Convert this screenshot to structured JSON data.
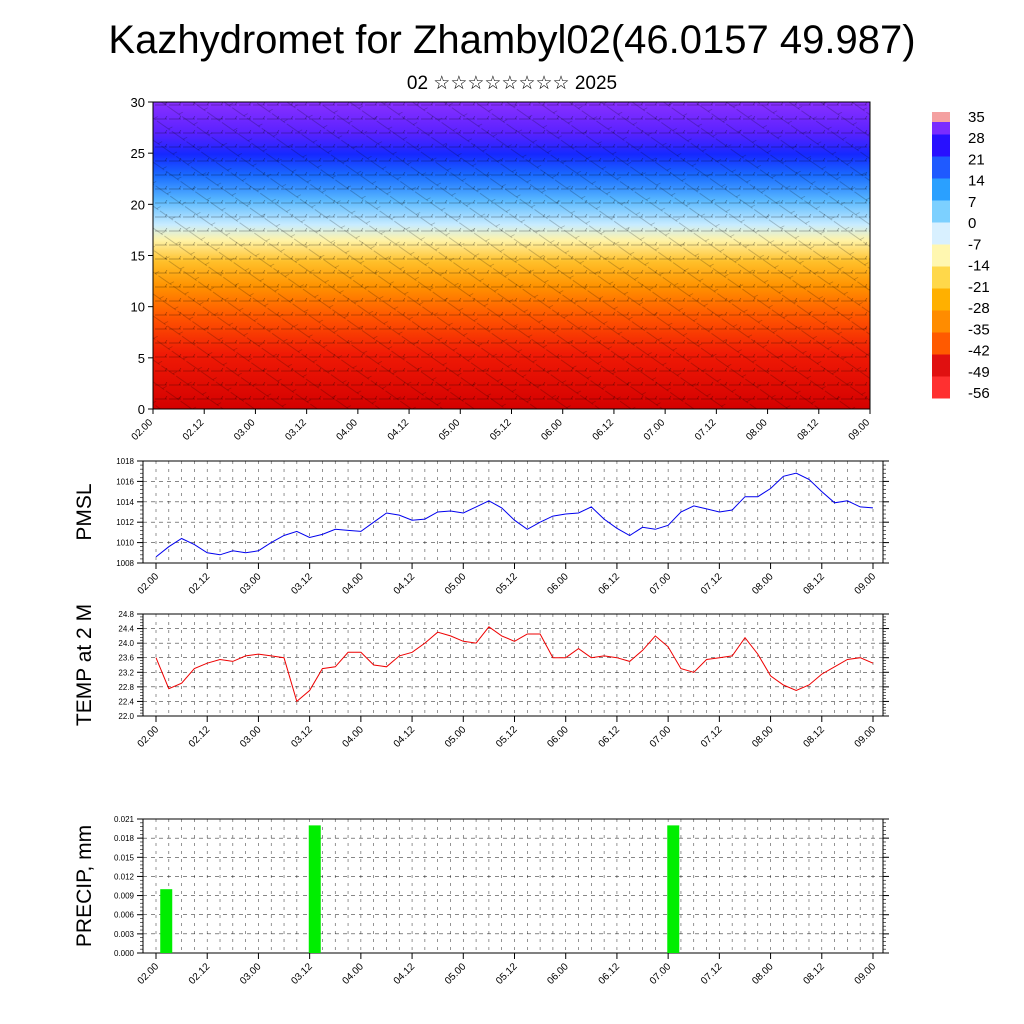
{
  "header": {
    "title": "Kazhydromet for Zhambyl02(46.0157 49.987)",
    "subtitle": "02 ☆☆☆☆☆☆☆☆ 2025"
  },
  "chart_data": [
    {
      "type": "heatmap",
      "name": "cross-section",
      "x_ticks": [
        "02.00",
        "02.12",
        "03.00",
        "03.12",
        "04.00",
        "04.12",
        "05.00",
        "05.12",
        "06.00",
        "06.12",
        "07.00",
        "07.12",
        "08.00",
        "08.12",
        "09.00"
      ],
      "y_ticks": [
        "0",
        "5",
        "10",
        "15",
        "20",
        "25",
        "30"
      ],
      "ylim": [
        0,
        30
      ],
      "colorbar_labels": [
        "35",
        "28",
        "21",
        "14",
        "7",
        "0",
        "-7",
        "-14",
        "-21",
        "-28",
        "-35",
        "-42",
        "-49",
        "-56"
      ],
      "colormap": [
        "#ff3030",
        "#e01010",
        "#ff5a00",
        "#ff8c00",
        "#ffb000",
        "#ffd84a",
        "#fff7b0",
        "#d8f0ff",
        "#7cd0ff",
        "#2aa0ff",
        "#1f5aff",
        "#2810ff",
        "#7a2cff"
      ]
    },
    {
      "type": "line",
      "name": "pmsl",
      "ylabel": "PMSL",
      "ylim": [
        1008,
        1018
      ],
      "y_ticks": [
        "1008",
        "1010",
        "1012",
        "1014",
        "1016",
        "1018"
      ],
      "x_ticks": [
        "02.00",
        "02.12",
        "03.00",
        "03.12",
        "04.00",
        "04.12",
        "05.00",
        "05.12",
        "06.00",
        "06.12",
        "07.00",
        "07.12",
        "08.00",
        "08.12",
        "09.00"
      ],
      "line_color": "#0000ee",
      "values": [
        1008.6,
        1009.6,
        1010.4,
        1009.8,
        1009.0,
        1008.8,
        1009.2,
        1009.0,
        1009.2,
        1010.0,
        1010.7,
        1011.1,
        1010.5,
        1010.8,
        1011.3,
        1011.2,
        1011.1,
        1012.0,
        1012.9,
        1012.7,
        1012.2,
        1012.3,
        1013.0,
        1013.1,
        1012.9,
        1013.5,
        1014.1,
        1013.4,
        1012.2,
        1011.3,
        1012.0,
        1012.6,
        1012.8,
        1012.9,
        1013.5,
        1012.3,
        1011.4,
        1010.7,
        1011.5,
        1011.3,
        1011.7,
        1013.0,
        1013.6,
        1013.3,
        1013.0,
        1013.2,
        1014.5,
        1014.5,
        1015.3,
        1016.5,
        1016.8,
        1016.2,
        1015.0,
        1013.9,
        1014.1,
        1013.5,
        1013.4
      ]
    },
    {
      "type": "line",
      "name": "temp2m",
      "ylabel": "TEMP at 2 M",
      "ylim": [
        22.0,
        24.8
      ],
      "y_ticks": [
        "22.0",
        "22.4",
        "22.8",
        "23.2",
        "23.6",
        "24.0",
        "24.4",
        "24.8"
      ],
      "x_ticks": [
        "02.00",
        "02.12",
        "03.00",
        "03.12",
        "04.00",
        "04.12",
        "05.00",
        "05.12",
        "06.00",
        "06.12",
        "07.00",
        "07.12",
        "08.00",
        "08.12",
        "09.00"
      ],
      "line_color": "#ee0000",
      "values": [
        23.6,
        22.75,
        22.9,
        23.3,
        23.45,
        23.55,
        23.5,
        23.65,
        23.7,
        23.65,
        23.6,
        22.4,
        22.7,
        23.3,
        23.35,
        23.75,
        23.75,
        23.4,
        23.35,
        23.65,
        23.75,
        24.0,
        24.3,
        24.2,
        24.05,
        24.0,
        24.45,
        24.2,
        24.05,
        24.25,
        24.25,
        23.6,
        23.6,
        23.85,
        23.6,
        23.65,
        23.6,
        23.5,
        23.8,
        24.2,
        23.9,
        23.3,
        23.2,
        23.55,
        23.6,
        23.65,
        24.15,
        23.7,
        23.1,
        22.85,
        22.7,
        22.85,
        23.15,
        23.35,
        23.55,
        23.6,
        23.45
      ]
    },
    {
      "type": "bar",
      "name": "precip",
      "ylabel": "PRECIP, mm",
      "ylim": [
        0,
        0.021
      ],
      "y_ticks": [
        "0.000",
        "0.003",
        "0.006",
        "0.009",
        "0.012",
        "0.015",
        "0.018",
        "0.021"
      ],
      "x_ticks": [
        "02.00",
        "02.12",
        "03.00",
        "03.12",
        "04.00",
        "04.12",
        "05.00",
        "05.12",
        "06.00",
        "06.12",
        "07.00",
        "07.12",
        "08.00",
        "08.12",
        "09.00"
      ],
      "bar_color": "#00ee00",
      "bars": [
        {
          "x": 0.2,
          "value": 0.01
        },
        {
          "x": 3.1,
          "value": 0.02
        },
        {
          "x": 10.1,
          "value": 0.02
        }
      ]
    }
  ]
}
